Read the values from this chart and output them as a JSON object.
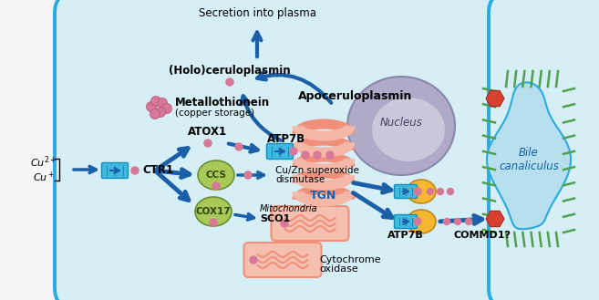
{
  "bg_color": "#f5f5f5",
  "cell_bg": "#d6eef5",
  "cell_border": "#29abe2",
  "arrow_color": "#1a5fa8",
  "nucleus_fill": "#b0aac8",
  "nucleus_border": "#8888aa",
  "tgn_fill": "#f0907a",
  "tgn_fill_light": "#f5b8a8",
  "mito_fill": "#f0907a",
  "mito_fill_light": "#f5c0b0",
  "green_oval": "#a8c858",
  "green_oval_border": "#6a9030",
  "pink_dot": "#d87898",
  "orange_blob": "#f5b830",
  "orange_blob_border": "#c08820",
  "ctr1_fill": "#40b8e0",
  "ctr1_dark": "#1090b8",
  "bile_bg": "#b8dff0",
  "bile_border": "#29abe2",
  "green_fiber": "#50a050",
  "red_hex": "#d84030",
  "white_bg": "#ffffff",
  "secretion_text": "Secretion into plasma",
  "holo_text": "(Holo)ceruloplasmin",
  "apo_text": "Apoceruloplasmin",
  "nucleus_text": "Nucleus",
  "atox1_text": "ATOX1",
  "ccs_text": "CCS",
  "cox17_text": "COX17",
  "ctr1_text": "CTR1",
  "atp7b_text": "ATP7B",
  "tgn_text": "TGN",
  "commd1_text": "COMMD1?",
  "cuzn_line1": "Cu/Zn superoxide",
  "cuzn_line2": "dismutase",
  "mito_text": "Mitochondria",
  "sco1_text": "SCO1",
  "cyto_line1": "Cytochrome",
  "cyto_line2": "oxidase",
  "mt_bold": "Metallothionein",
  "mt_normal": "(copper storage)",
  "bile_text": "Bile\ncanaliculus"
}
